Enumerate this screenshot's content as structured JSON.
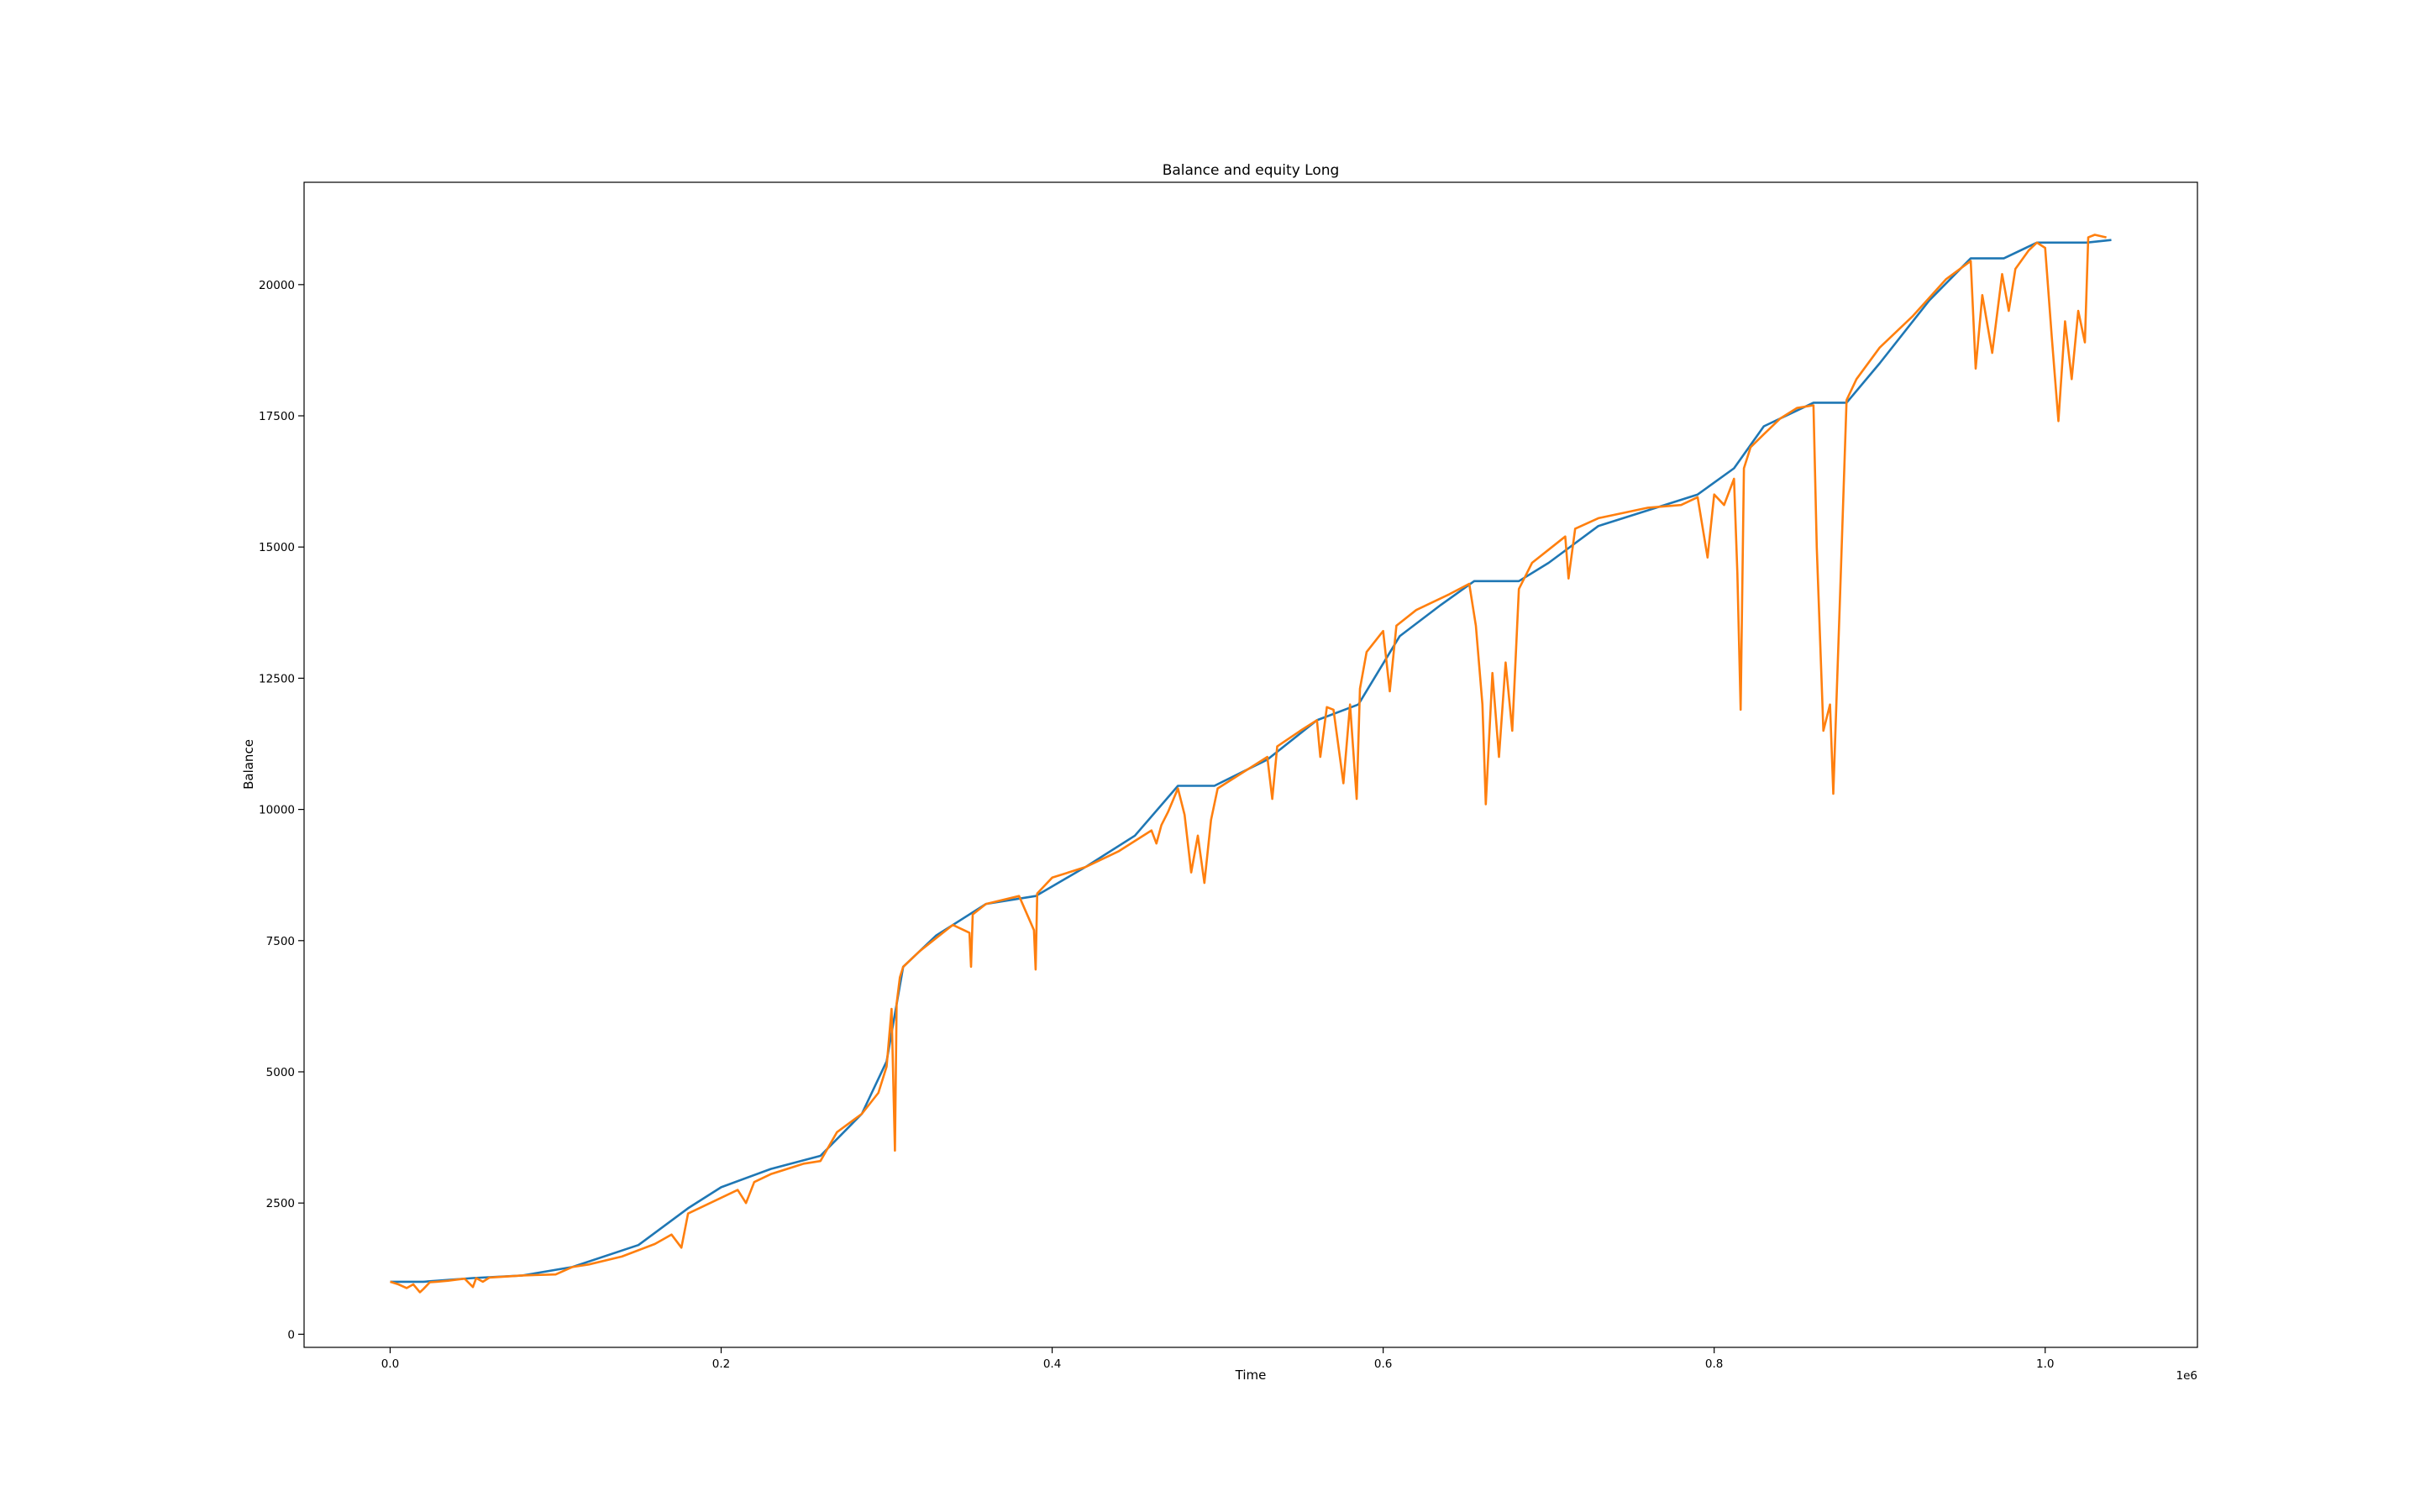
{
  "chart_data": {
    "type": "line",
    "title": "Balance and equity Long",
    "xlabel": "Time",
    "ylabel": "Balance",
    "x_scale_label": "1e6",
    "xlim": [
      -52000,
      1092000
    ],
    "ylim": [
      -250,
      21950
    ],
    "x_ticks": [
      0,
      200000,
      400000,
      600000,
      800000,
      1000000
    ],
    "x_tick_labels": [
      "0.0",
      "0.2",
      "0.4",
      "0.6",
      "0.8",
      "1.0"
    ],
    "y_ticks": [
      0,
      2500,
      5000,
      7500,
      10000,
      12500,
      15000,
      17500,
      20000
    ],
    "y_tick_labels": [
      "0",
      "2500",
      "5000",
      "7500",
      "10000",
      "12500",
      "15000",
      "17500",
      "20000"
    ],
    "grid": false,
    "legend": "none",
    "series": [
      {
        "color": "#1f77b4",
        "role": "balance",
        "x": [
          0,
          20000,
          50000,
          80000,
          110000,
          150000,
          180000,
          200000,
          230000,
          260000,
          285000,
          300000,
          310000,
          330000,
          360000,
          390000,
          420000,
          450000,
          476000,
          498000,
          530000,
          560000,
          585000,
          610000,
          635000,
          655000,
          682000,
          700000,
          730000,
          760000,
          790000,
          812000,
          830000,
          860000,
          880000,
          900000,
          930000,
          955000,
          975000,
          995000,
          1025000,
          1040000
        ],
        "y": [
          1000,
          1000,
          1070,
          1120,
          1280,
          1700,
          2400,
          2800,
          3150,
          3400,
          4200,
          5200,
          7000,
          7600,
          8200,
          8350,
          8900,
          9500,
          10450,
          10450,
          10950,
          11700,
          12000,
          13300,
          13900,
          14350,
          14350,
          14700,
          15400,
          15700,
          16000,
          16500,
          17300,
          17750,
          17750,
          18500,
          19700,
          20500,
          20500,
          20800,
          20800,
          20850
        ]
      },
      {
        "color": "#ff7f0e",
        "role": "equity",
        "x": [
          0,
          5000,
          10000,
          14000,
          18000,
          20000,
          24000,
          28000,
          35000,
          45000,
          50000,
          52000,
          56000,
          60000,
          80000,
          100000,
          110000,
          120000,
          140000,
          150000,
          160000,
          170000,
          176000,
          180000,
          200000,
          210000,
          215000,
          220000,
          230000,
          250000,
          260000,
          270000,
          285000,
          295000,
          300000,
          303000,
          305000,
          306000,
          308000,
          310000,
          320000,
          330000,
          340000,
          350000,
          351000,
          352000,
          360000,
          380000,
          389000,
          390000,
          391000,
          400000,
          420000,
          440000,
          460000,
          463000,
          466000,
          470000,
          476000,
          480000,
          484000,
          488000,
          492000,
          496000,
          500000,
          510000,
          530000,
          533000,
          536000,
          550000,
          560000,
          562000,
          566000,
          570000,
          576000,
          580000,
          584000,
          586000,
          590000,
          600000,
          604000,
          608000,
          620000,
          640000,
          652000,
          656000,
          660000,
          662000,
          666000,
          670000,
          674000,
          678000,
          682000,
          686000,
          690000,
          700000,
          710000,
          712000,
          716000,
          730000,
          760000,
          780000,
          790000,
          796000,
          800000,
          806000,
          812000,
          814000,
          816000,
          818000,
          822000,
          830000,
          840000,
          850000,
          860000,
          862000,
          866000,
          870000,
          872000,
          876000,
          880000,
          886000,
          900000,
          920000,
          940000,
          955000,
          958000,
          962000,
          968000,
          974000,
          978000,
          982000,
          990000,
          995000,
          1000000,
          1004000,
          1008000,
          1012000,
          1016000,
          1020000,
          1024000,
          1026000,
          1030000,
          1037000
        ],
        "y": [
          1000,
          950,
          880,
          950,
          800,
          860,
          990,
          1000,
          1020,
          1060,
          900,
          1070,
          1000,
          1080,
          1120,
          1140,
          1280,
          1330,
          1480,
          1600,
          1720,
          1900,
          1650,
          2300,
          2600,
          2750,
          2500,
          2900,
          3050,
          3250,
          3300,
          3850,
          4200,
          4600,
          5100,
          6200,
          3500,
          6300,
          6800,
          7000,
          7300,
          7550,
          7800,
          7650,
          7000,
          8000,
          8200,
          8350,
          7700,
          6950,
          8400,
          8700,
          8900,
          9200,
          9600,
          9350,
          9700,
          9950,
          10400,
          9900,
          8800,
          9500,
          8600,
          9800,
          10400,
          10600,
          11000,
          10200,
          11200,
          11500,
          11700,
          11000,
          11950,
          11900,
          10500,
          12000,
          10200,
          12300,
          13000,
          13400,
          12250,
          13500,
          13800,
          14100,
          14300,
          13500,
          12000,
          10100,
          12600,
          11000,
          12800,
          11500,
          14200,
          14450,
          14700,
          14950,
          15200,
          14400,
          15350,
          15550,
          15750,
          15800,
          15950,
          14800,
          16000,
          15800,
          16300,
          14500,
          11900,
          16500,
          16900,
          17150,
          17450,
          17650,
          17700,
          15000,
          11500,
          12000,
          10300,
          14000,
          17800,
          18200,
          18800,
          19400,
          20100,
          20450,
          18400,
          19800,
          18700,
          20200,
          19500,
          20300,
          20650,
          20800,
          20700,
          19000,
          17400,
          19300,
          18200,
          19500,
          18900,
          20900,
          20950,
          20900
        ]
      }
    ]
  }
}
